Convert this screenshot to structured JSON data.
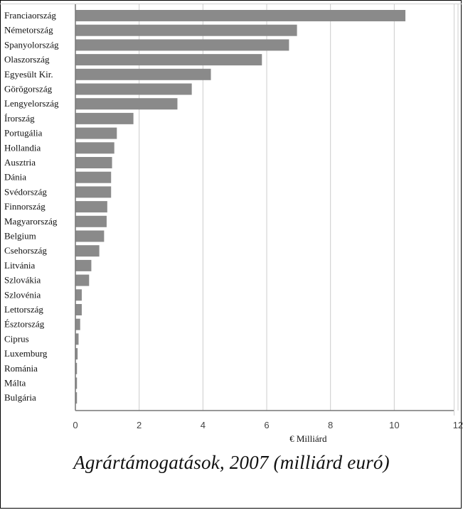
{
  "caption": "Agrártámogatások, 2007 (milliárd euró)",
  "colors": {
    "bar": "#8a8a8a",
    "grid": "#cccccc",
    "axis": "#777777",
    "text": "#111111"
  },
  "chart_data": {
    "type": "bar",
    "orientation": "horizontal",
    "title": "",
    "xlabel": "€ Milliárd",
    "ylabel": "",
    "xlim": [
      0,
      12
    ],
    "xticks": [
      "0",
      "2",
      "4",
      "6",
      "8",
      "10",
      "12"
    ],
    "grid": true,
    "categories": [
      "Franciaország",
      "Németország",
      "Spanyolország",
      "Olaszország",
      "Egyesült Kir.",
      "Görögország",
      "Lengyelország",
      "Írország",
      "Portugália",
      "Hollandia",
      "Ausztria",
      "Dánia",
      "Svédország",
      "Finnország",
      "Magyarország",
      "Belgium",
      "Csehország",
      "Litvánia",
      "Szlovákia",
      "Szlovénia",
      "Lettország",
      "Észtország",
      "Ciprus",
      "Luxemburg",
      "Románia",
      "Málta",
      "Bulgária"
    ],
    "values": [
      10.35,
      6.95,
      6.7,
      5.85,
      4.25,
      3.65,
      3.2,
      1.82,
      1.3,
      1.22,
      1.15,
      1.12,
      1.12,
      1.0,
      0.98,
      0.9,
      0.75,
      0.5,
      0.43,
      0.2,
      0.2,
      0.15,
      0.1,
      0.07,
      0.05,
      0.05,
      0.05
    ]
  }
}
